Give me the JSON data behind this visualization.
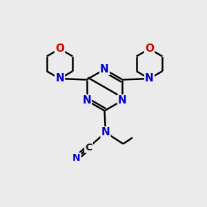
{
  "background_color": "#ebebeb",
  "bond_color": "#000000",
  "bond_width": 1.8,
  "atom_colors": {
    "N": "#0000cc",
    "O": "#dd0000",
    "C": "#1a1a1a"
  },
  "figsize": [
    3.0,
    3.0
  ],
  "dpi": 100
}
